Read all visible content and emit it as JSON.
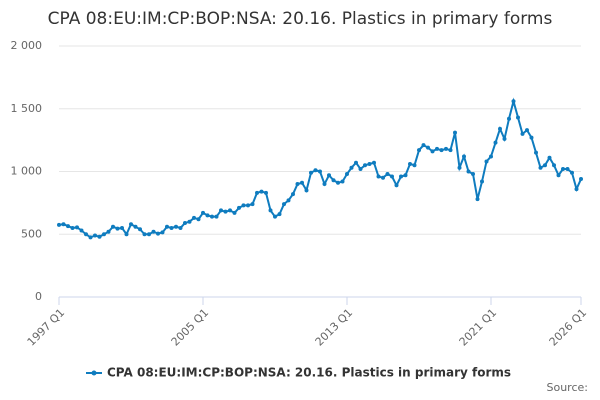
{
  "chart_data": {
    "type": "line",
    "title": "CPA 08:EU:IM:CP:BOP:NSA: 20.16. Plastics in primary forms",
    "source": "Source:",
    "categories": [
      "1997 Q1",
      null,
      null,
      null,
      null,
      null,
      null,
      null,
      null,
      null,
      null,
      null,
      null,
      null,
      null,
      null,
      null,
      null,
      null,
      null,
      null,
      null,
      null,
      null,
      null,
      null,
      null,
      null,
      null,
      null,
      null,
      null,
      "2005 Q1",
      null,
      null,
      null,
      null,
      null,
      null,
      null,
      null,
      null,
      null,
      null,
      null,
      null,
      null,
      null,
      null,
      null,
      null,
      null,
      null,
      null,
      null,
      null,
      null,
      null,
      null,
      null,
      null,
      null,
      null,
      null,
      "2013 Q1",
      null,
      null,
      null,
      null,
      null,
      null,
      null,
      null,
      null,
      null,
      null,
      null,
      null,
      null,
      null,
      null,
      null,
      null,
      null,
      null,
      null,
      null,
      null,
      null,
      null,
      null,
      null,
      null,
      null,
      null,
      null,
      "2021 Q1",
      null,
      null,
      null,
      null,
      null,
      null,
      null,
      null,
      null,
      null,
      null,
      null,
      null,
      null,
      null,
      null,
      null,
      null,
      null,
      "2026 Q1"
    ],
    "series": [
      {
        "name": "CPA 08:EU:IM:CP:BOP:NSA: 20.16. Plastics in primary forms",
        "color": "#0f7cbf",
        "values": [
          575,
          580,
          565,
          550,
          555,
          530,
          500,
          475,
          490,
          480,
          500,
          520,
          560,
          545,
          550,
          500,
          580,
          560,
          540,
          500,
          500,
          520,
          505,
          515,
          560,
          550,
          560,
          550,
          590,
          600,
          630,
          620,
          670,
          650,
          640,
          640,
          690,
          680,
          690,
          670,
          710,
          730,
          730,
          740,
          830,
          840,
          830,
          690,
          640,
          660,
          740,
          770,
          820,
          900,
          910,
          850,
          990,
          1010,
          1000,
          900,
          970,
          930,
          910,
          920,
          980,
          1030,
          1070,
          1020,
          1050,
          1060,
          1070,
          960,
          950,
          980,
          960,
          890,
          960,
          970,
          1060,
          1050,
          1170,
          1210,
          1190,
          1160,
          1180,
          1170,
          1180,
          1170,
          1310,
          1030,
          1120,
          1000,
          980,
          780,
          920,
          1080,
          1120,
          1230,
          1340,
          1260,
          1420,
          1560,
          1430,
          1300,
          1330,
          1270,
          1150,
          1030,
          1050,
          1110,
          1050,
          970,
          1020,
          1020,
          990,
          860,
          940
        ]
      }
    ],
    "ylim": [
      0,
      2000
    ],
    "yticks": [
      0,
      500,
      {
        "value": 1000,
        "label": "1 000"
      },
      {
        "value": 1500,
        "label": "1 500"
      },
      {
        "value": 2000,
        "label": "2 000"
      }
    ],
    "grid": true,
    "legend": "bottom"
  }
}
